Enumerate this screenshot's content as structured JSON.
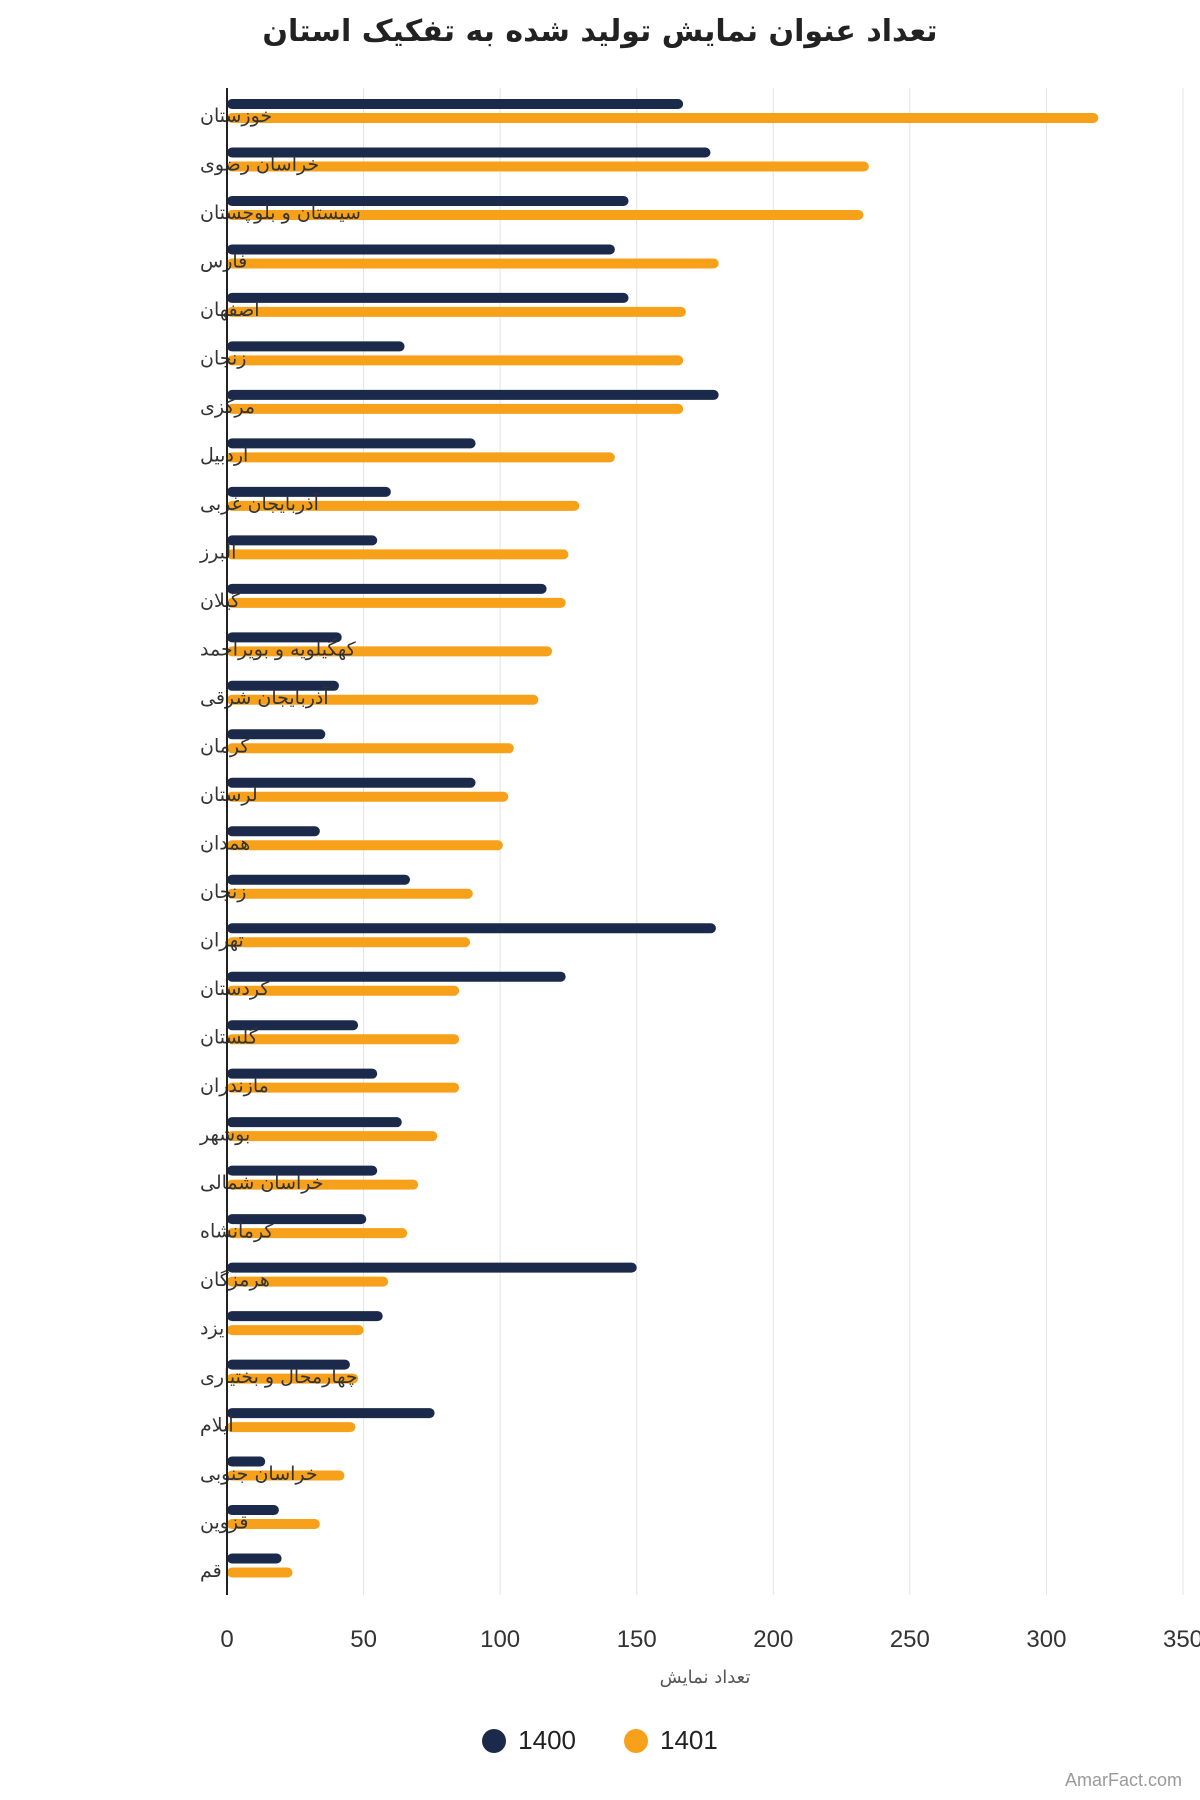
{
  "chart_data": {
    "type": "bar",
    "orientation": "horizontal",
    "title": "تعداد عنوان نمایش تولید شده به تفکیک استان",
    "xlabel": "تعداد نمایش",
    "ylabel": "",
    "xlim": [
      0,
      350
    ],
    "xticks": [
      0,
      50,
      100,
      150,
      200,
      250,
      300,
      350
    ],
    "grid": "vertical",
    "legend_position": "bottom",
    "categories": [
      "خوزستان",
      "خراسان رضوی",
      "سیستان و بلوچستان",
      "فارس",
      "اصفهان",
      "زنجان",
      "مرکزی",
      "اردبیل",
      "آذربایجان غربی",
      "البرز",
      "گیلان",
      "کهگیلویه و بویراحمد",
      "آذربایجان شرقی",
      "کرمان",
      "لرستان",
      "همدان",
      "زنجان",
      "تهران",
      "کردستان",
      "گلستان",
      "مازندران",
      "بوشهر",
      "خراسان شمالی",
      "کرمانشاه",
      "هرمزگان",
      "یزد",
      "چهارمحال و بختیاری",
      "ایلام",
      "خراسان جنوبی",
      "قزوین",
      "قم"
    ],
    "series": [
      {
        "name": "1400",
        "color": "#1b2a4a",
        "values": [
          167,
          177,
          147,
          142,
          147,
          65,
          180,
          91,
          60,
          55,
          117,
          42,
          41,
          36,
          91,
          34,
          67,
          179,
          124,
          48,
          55,
          64,
          55,
          51,
          150,
          57,
          45,
          76,
          14,
          19,
          20
        ]
      },
      {
        "name": "1401",
        "color": "#f7a11a",
        "values": [
          319,
          235,
          233,
          180,
          168,
          167,
          167,
          142,
          129,
          125,
          124,
          119,
          114,
          105,
          103,
          101,
          90,
          89,
          85,
          85,
          85,
          77,
          70,
          66,
          59,
          50,
          48,
          47,
          43,
          34,
          24
        ]
      }
    ]
  },
  "watermark": "AmarFact.com"
}
